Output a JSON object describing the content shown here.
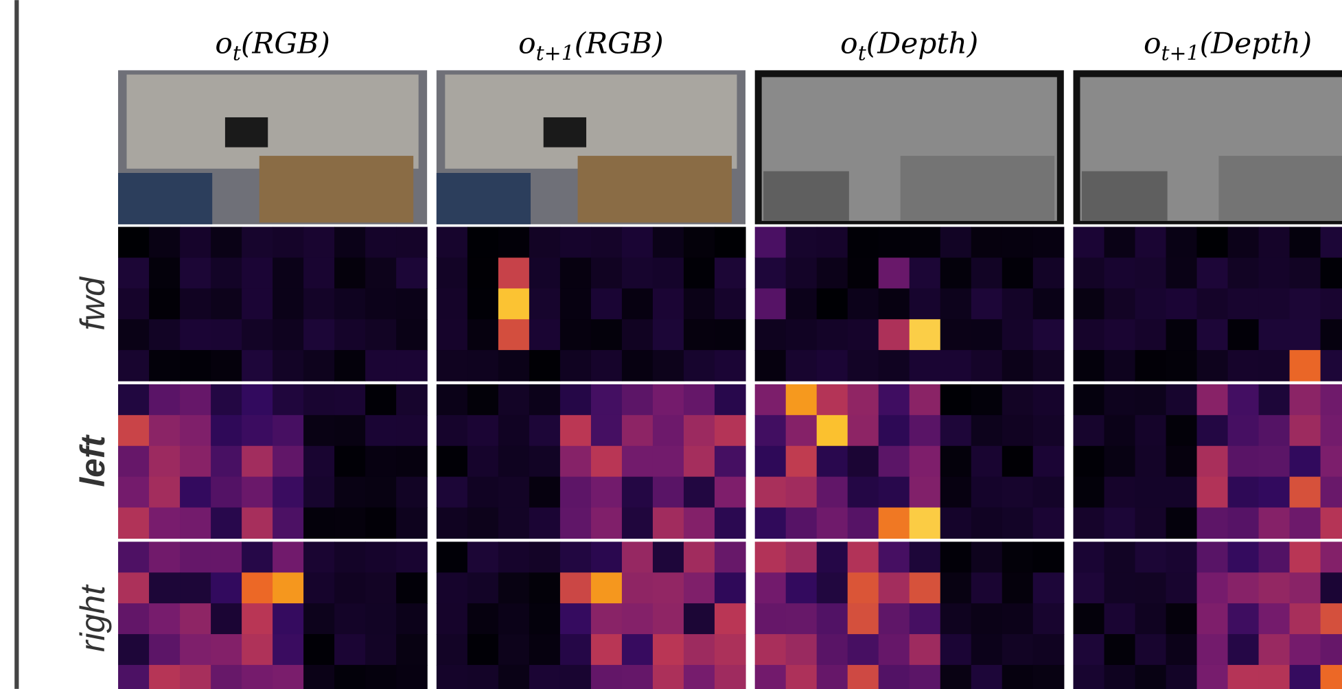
{
  "columns": [
    {
      "base": "o",
      "subscript": "t",
      "suffix": "(RGB)"
    },
    {
      "base": "o",
      "subscript": "t+1",
      "suffix": "(RGB)"
    },
    {
      "base": "o",
      "subscript": "t",
      "suffix": "(Depth)"
    },
    {
      "base": "o",
      "subscript": "t+1",
      "suffix": "(Depth)"
    }
  ],
  "rows": [
    "fwd",
    "left",
    "right"
  ]
}
